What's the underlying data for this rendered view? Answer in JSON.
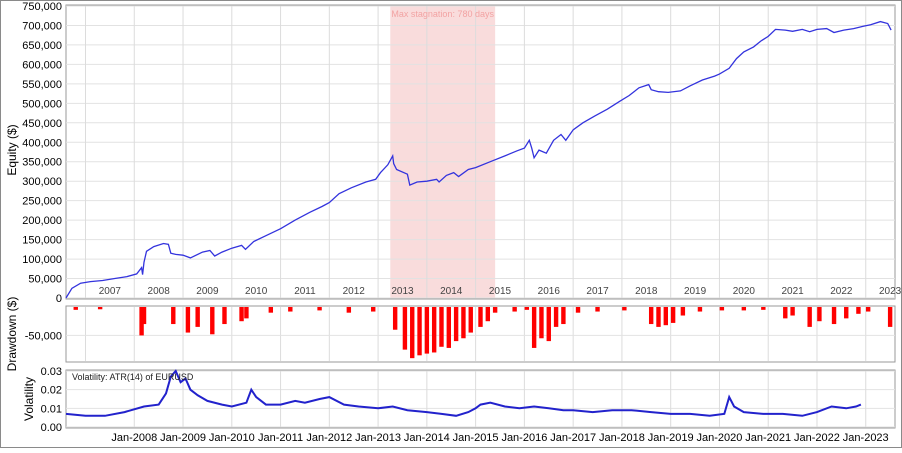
{
  "chart_data": [
    {
      "type": "line",
      "ylabel": "Equity ($)",
      "ylim": [
        0,
        750000
      ],
      "yticks": [
        0,
        50000,
        100000,
        150000,
        200000,
        250000,
        300000,
        350000,
        400000,
        450000,
        500000,
        550000,
        600000,
        650000,
        700000,
        750000
      ],
      "ytick_labels": [
        "0",
        "50,000",
        "100,000",
        "150,000",
        "200,000",
        "250,000",
        "300,000",
        "350,000",
        "400,000",
        "450,000",
        "500,000",
        "550,000",
        "600,000",
        "650,000",
        "700,000",
        "750,000"
      ],
      "xlim": [
        2006.6,
        2023.6
      ],
      "year_labels": [
        "2007",
        "2008",
        "2009",
        "2010",
        "2011",
        "2012",
        "2013",
        "2014",
        "2015",
        "2016",
        "2017",
        "2018",
        "2019",
        "2020",
        "2021",
        "2022",
        "2023"
      ],
      "grid": true,
      "annotation": {
        "text": "Max stagnation: 780 days",
        "x_start": 2013.25,
        "x_end": 2015.4,
        "color": "#f9dcdc"
      },
      "series": [
        {
          "color": "#3333dd",
          "points": [
            [
              2006.6,
              0
            ],
            [
              2006.72,
              25000
            ],
            [
              2006.9,
              38000
            ],
            [
              2007.1,
              42000
            ],
            [
              2007.35,
              45000
            ],
            [
              2007.6,
              50000
            ],
            [
              2007.85,
              55000
            ],
            [
              2008.05,
              62000
            ],
            [
              2008.15,
              78000
            ],
            [
              2008.17,
              60000
            ],
            [
              2008.2,
              92000
            ],
            [
              2008.25,
              120000
            ],
            [
              2008.4,
              132000
            ],
            [
              2008.6,
              140000
            ],
            [
              2008.7,
              138000
            ],
            [
              2008.75,
              115000
            ],
            [
              2008.85,
              112000
            ],
            [
              2009.0,
              110000
            ],
            [
              2009.15,
              103000
            ],
            [
              2009.4,
              118000
            ],
            [
              2009.55,
              122000
            ],
            [
              2009.65,
              108000
            ],
            [
              2009.8,
              118000
            ],
            [
              2010.0,
              128000
            ],
            [
              2010.2,
              135000
            ],
            [
              2010.28,
              125000
            ],
            [
              2010.45,
              145000
            ],
            [
              2010.7,
              160000
            ],
            [
              2011.0,
              178000
            ],
            [
              2011.3,
              200000
            ],
            [
              2011.6,
              220000
            ],
            [
              2011.85,
              235000
            ],
            [
              2012.0,
              245000
            ],
            [
              2012.2,
              268000
            ],
            [
              2012.45,
              283000
            ],
            [
              2012.75,
              298000
            ],
            [
              2012.95,
              305000
            ],
            [
              2013.05,
              322000
            ],
            [
              2013.2,
              342000
            ],
            [
              2013.3,
              365000
            ],
            [
              2013.32,
              345000
            ],
            [
              2013.38,
              330000
            ],
            [
              2013.6,
              318000
            ],
            [
              2013.65,
              290000
            ],
            [
              2013.8,
              298000
            ],
            [
              2014.0,
              300000
            ],
            [
              2014.2,
              305000
            ],
            [
              2014.25,
              298000
            ],
            [
              2014.4,
              315000
            ],
            [
              2014.55,
              322000
            ],
            [
              2014.65,
              312000
            ],
            [
              2014.85,
              330000
            ],
            [
              2015.0,
              335000
            ],
            [
              2015.3,
              350000
            ],
            [
              2015.6,
              365000
            ],
            [
              2015.85,
              378000
            ],
            [
              2016.0,
              385000
            ],
            [
              2016.1,
              405000
            ],
            [
              2016.15,
              385000
            ],
            [
              2016.2,
              360000
            ],
            [
              2016.3,
              380000
            ],
            [
              2016.45,
              372000
            ],
            [
              2016.6,
              405000
            ],
            [
              2016.75,
              420000
            ],
            [
              2016.85,
              405000
            ],
            [
              2017.0,
              432000
            ],
            [
              2017.2,
              450000
            ],
            [
              2017.45,
              468000
            ],
            [
              2017.7,
              485000
            ],
            [
              2017.95,
              505000
            ],
            [
              2018.15,
              520000
            ],
            [
              2018.35,
              540000
            ],
            [
              2018.55,
              548000
            ],
            [
              2018.6,
              535000
            ],
            [
              2018.75,
              530000
            ],
            [
              2018.95,
              528000
            ],
            [
              2019.2,
              532000
            ],
            [
              2019.4,
              545000
            ],
            [
              2019.65,
              560000
            ],
            [
              2019.9,
              570000
            ],
            [
              2020.0,
              575000
            ],
            [
              2020.2,
              590000
            ],
            [
              2020.35,
              615000
            ],
            [
              2020.5,
              632000
            ],
            [
              2020.7,
              645000
            ],
            [
              2020.85,
              660000
            ],
            [
              2021.0,
              672000
            ],
            [
              2021.15,
              690000
            ],
            [
              2021.35,
              688000
            ],
            [
              2021.5,
              685000
            ],
            [
              2021.7,
              690000
            ],
            [
              2021.85,
              684000
            ],
            [
              2022.0,
              690000
            ],
            [
              2022.2,
              692000
            ],
            [
              2022.35,
              682000
            ],
            [
              2022.55,
              688000
            ],
            [
              2022.75,
              692000
            ],
            [
              2022.95,
              698000
            ],
            [
              2023.1,
              702000
            ],
            [
              2023.3,
              710000
            ],
            [
              2023.45,
              705000
            ],
            [
              2023.52,
              688000
            ]
          ]
        }
      ]
    },
    {
      "type": "bar",
      "ylabel": "Drawdown ($)",
      "ylim": [
        -95000,
        0
      ],
      "yticks": [
        -50000
      ],
      "ytick_labels": [
        "-50,000"
      ],
      "color": "#ff0000",
      "drawdowns": [
        [
          2006.8,
          -5000
        ],
        [
          2007.3,
          -4000
        ],
        [
          2008.15,
          -50000
        ],
        [
          2008.2,
          -30000
        ],
        [
          2008.8,
          -30000
        ],
        [
          2009.1,
          -45000
        ],
        [
          2009.3,
          -35000
        ],
        [
          2009.6,
          -48000
        ],
        [
          2009.85,
          -30000
        ],
        [
          2010.2,
          -25000
        ],
        [
          2010.3,
          -20000
        ],
        [
          2010.8,
          -10000
        ],
        [
          2011.2,
          -8000
        ],
        [
          2011.8,
          -6000
        ],
        [
          2012.4,
          -10000
        ],
        [
          2012.9,
          -8000
        ],
        [
          2013.35,
          -40000
        ],
        [
          2013.55,
          -75000
        ],
        [
          2013.7,
          -90000
        ],
        [
          2013.85,
          -85000
        ],
        [
          2014.0,
          -82000
        ],
        [
          2014.15,
          -80000
        ],
        [
          2014.3,
          -70000
        ],
        [
          2014.45,
          -72000
        ],
        [
          2014.6,
          -60000
        ],
        [
          2014.75,
          -55000
        ],
        [
          2014.9,
          -45000
        ],
        [
          2015.1,
          -35000
        ],
        [
          2015.25,
          -25000
        ],
        [
          2015.4,
          -10000
        ],
        [
          2015.8,
          -8000
        ],
        [
          2016.05,
          -5000
        ],
        [
          2016.2,
          -72000
        ],
        [
          2016.35,
          -55000
        ],
        [
          2016.5,
          -60000
        ],
        [
          2016.65,
          -35000
        ],
        [
          2016.8,
          -30000
        ],
        [
          2017.1,
          -10000
        ],
        [
          2017.5,
          -8000
        ],
        [
          2018.05,
          -6000
        ],
        [
          2018.6,
          -30000
        ],
        [
          2018.75,
          -35000
        ],
        [
          2018.9,
          -32000
        ],
        [
          2019.05,
          -28000
        ],
        [
          2019.25,
          -15000
        ],
        [
          2019.6,
          -8000
        ],
        [
          2020.05,
          -6000
        ],
        [
          2020.5,
          -6000
        ],
        [
          2020.9,
          -5000
        ],
        [
          2021.35,
          -20000
        ],
        [
          2021.5,
          -15000
        ],
        [
          2021.85,
          -35000
        ],
        [
          2022.05,
          -25000
        ],
        [
          2022.35,
          -30000
        ],
        [
          2022.6,
          -20000
        ],
        [
          2022.85,
          -12000
        ],
        [
          2023.05,
          -8000
        ],
        [
          2023.5,
          -35000
        ]
      ]
    },
    {
      "type": "line",
      "ylabel": "Volatility",
      "series_label": "Volatility: ATR(14) of EURUSD",
      "ylim": [
        0,
        0.03
      ],
      "yticks": [
        0,
        0.01,
        0.02,
        0.03
      ],
      "ytick_labels": [
        "0.00",
        "0.01",
        "0.02",
        "0.03"
      ],
      "xlim": [
        2006.6,
        2023.6
      ],
      "x_labels": [
        "Jan-2008",
        "Jan-2009",
        "Jan-2010",
        "Jan-2011",
        "Jan-2012",
        "Jan-2013",
        "Jan-2014",
        "Jan-2015",
        "Jan-2016",
        "Jan-2017",
        "Jan-2018",
        "Jan-2019",
        "Jan-2020",
        "Jan-2021",
        "Jan-2022",
        "Jan-2023"
      ],
      "x_label_positions": [
        2008,
        2009,
        2010,
        2011,
        2012,
        2013,
        2014,
        2015,
        2016,
        2017,
        2018,
        2019,
        2020,
        2021,
        2022,
        2023
      ],
      "color": "#2222cc",
      "points": [
        [
          2006.6,
          0.007
        ],
        [
          2007.0,
          0.006
        ],
        [
          2007.4,
          0.006
        ],
        [
          2007.8,
          0.008
        ],
        [
          2008.2,
          0.011
        ],
        [
          2008.5,
          0.012
        ],
        [
          2008.65,
          0.018
        ],
        [
          2008.75,
          0.027
        ],
        [
          2008.85,
          0.03
        ],
        [
          2008.95,
          0.024
        ],
        [
          2009.05,
          0.026
        ],
        [
          2009.15,
          0.02
        ],
        [
          2009.3,
          0.017
        ],
        [
          2009.5,
          0.014
        ],
        [
          2009.8,
          0.012
        ],
        [
          2010.0,
          0.011
        ],
        [
          2010.3,
          0.013
        ],
        [
          2010.4,
          0.02
        ],
        [
          2010.5,
          0.016
        ],
        [
          2010.7,
          0.012
        ],
        [
          2011.0,
          0.012
        ],
        [
          2011.3,
          0.014
        ],
        [
          2011.5,
          0.013
        ],
        [
          2011.8,
          0.015
        ],
        [
          2012.0,
          0.016
        ],
        [
          2012.3,
          0.012
        ],
        [
          2012.6,
          0.011
        ],
        [
          2013.0,
          0.01
        ],
        [
          2013.3,
          0.011
        ],
        [
          2013.6,
          0.009
        ],
        [
          2014.0,
          0.008
        ],
        [
          2014.3,
          0.007
        ],
        [
          2014.6,
          0.006
        ],
        [
          2014.85,
          0.008
        ],
        [
          2015.0,
          0.01
        ],
        [
          2015.1,
          0.012
        ],
        [
          2015.3,
          0.013
        ],
        [
          2015.6,
          0.011
        ],
        [
          2015.9,
          0.01
        ],
        [
          2016.2,
          0.011
        ],
        [
          2016.5,
          0.01
        ],
        [
          2016.8,
          0.009
        ],
        [
          2017.0,
          0.009
        ],
        [
          2017.4,
          0.008
        ],
        [
          2017.8,
          0.009
        ],
        [
          2018.2,
          0.009
        ],
        [
          2018.6,
          0.008
        ],
        [
          2019.0,
          0.007
        ],
        [
          2019.4,
          0.007
        ],
        [
          2019.8,
          0.006
        ],
        [
          2020.1,
          0.007
        ],
        [
          2020.2,
          0.016
        ],
        [
          2020.3,
          0.011
        ],
        [
          2020.5,
          0.008
        ],
        [
          2020.9,
          0.007
        ],
        [
          2021.3,
          0.007
        ],
        [
          2021.7,
          0.006
        ],
        [
          2022.0,
          0.008
        ],
        [
          2022.3,
          0.011
        ],
        [
          2022.6,
          0.01
        ],
        [
          2022.8,
          0.011
        ],
        [
          2022.9,
          0.012
        ]
      ]
    }
  ]
}
